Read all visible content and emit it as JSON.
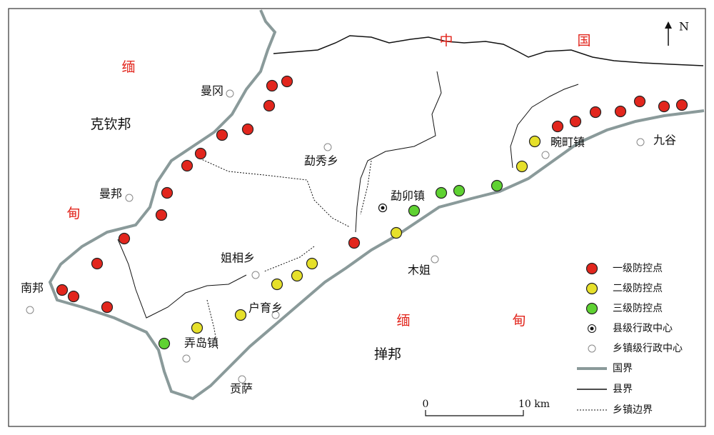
{
  "map": {
    "regions": [
      "缅",
      "甸",
      "中",
      "国",
      "缅",
      "甸",
      "克钦邦",
      "掸邦"
    ],
    "places": [
      "曼冈",
      "勐秀乡",
      "曼邦",
      "南邦",
      "姐相乡",
      "户育乡",
      "弄岛镇",
      "贡萨",
      "勐卯镇",
      "木姐",
      "畹町镇",
      "九谷"
    ],
    "legend": [
      "一级防控点",
      "二级防控点",
      "三级防控点",
      "县级行政中心",
      "乡镇级行政中心",
      "国界",
      "县界",
      "乡镇边界"
    ],
    "scale": {
      "start": "0",
      "end": "10 km"
    },
    "north": "N"
  }
}
